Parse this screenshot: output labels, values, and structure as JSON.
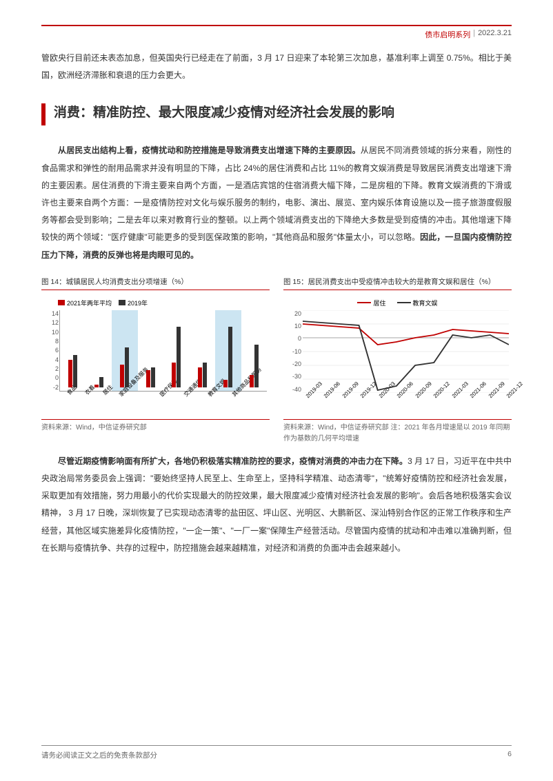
{
  "header": {
    "series": "债市启明系列",
    "date": "2022.3.21"
  },
  "intro_para": "管欧央行目前还未表态加息，但英国央行已经走在了前面，3 月 17 日迎来了本轮第三次加息，基准利率上调至 0.75%。相比于美国，欧洲经济滞胀和衰退的压力会更大。",
  "section_title": "消费：精准防控、最大限度减少疫情对经济社会发展的影响",
  "para1_lead": "从居民支出结构上看，疫情扰动和防控措施是导致消费支出增速下降的主要原因。",
  "para1_body": "从居民不同消费领域的拆分来看，刚性的食品需求和弹性的耐用品需求并没有明显的下降，占比 24%的居住消费和占比 11%的教育文娱消费是导致居民消费支出增速下滑的主要因素。居住消费的下滑主要来自两个方面，一是酒店宾馆的住宿消费大幅下降，二是房租的下降。教育文娱消费的下滑或许也主要来自两个方面：一是疫情防控对文化与娱乐服务的制约，电影、演出、展览、室内娱乐体育设施以及一揽子旅游度假服务等都会受到影响；二是去年以来对教育行业的整顿。以上两个领域消费支出的下降绝大多数是受到疫情的冲击。其他增速下降较快的两个领域：\"医疗健康\"可能更多的受到医保政策的影响，\"其他商品和服务\"体量太小，可以忽略。",
  "para1_tail": "因此，一旦国内疫情防控压力下降，消费的反弹也将是肉眼可见的。",
  "chart14": {
    "title": "图 14：城镇居民人均消费支出分项增速（%）",
    "type": "bar",
    "legend": [
      "2021年两年平均",
      "2019年"
    ],
    "colors": [
      "#c00000",
      "#333333"
    ],
    "highlight_color": "#cce5f2",
    "categories": [
      "食品",
      "衣着",
      "居住",
      "家庭设备及服务",
      "医疗保健",
      "交通通信",
      "教育文娱",
      "其他商品和服务"
    ],
    "highlight_idx": [
      2,
      6
    ],
    "series1": [
      5.5,
      0.5,
      4.5,
      3.5,
      5,
      4,
      1.5,
      2.5
    ],
    "series2": [
      6.5,
      2,
      8,
      4,
      12,
      5,
      12,
      8.5
    ],
    "ymin": -2,
    "ymax": 14,
    "ystep": 2,
    "source": "资料来源：Wind，中信证券研究部"
  },
  "chart15": {
    "title": "图 15：居民消费支出中受疫情冲击较大的是教育文娱和居住（%）",
    "type": "line",
    "legend": [
      "居住",
      "教育文娱"
    ],
    "colors": [
      "#c00000",
      "#333333"
    ],
    "xlabels": [
      "2019-03",
      "2019-06",
      "2019-09",
      "2019-12",
      "2020-03",
      "2020-06",
      "2020-09",
      "2020-12",
      "2021-03",
      "2021-06",
      "2021-09",
      "2021-12"
    ],
    "series_housing": [
      10,
      9,
      8,
      7,
      -5,
      -3,
      0,
      2,
      6,
      5,
      4,
      3
    ],
    "series_edu": [
      12,
      11,
      10,
      9,
      -38,
      -35,
      -20,
      -18,
      2,
      0,
      2,
      -5
    ],
    "ymin": -40,
    "ymax": 20,
    "ystep": 10,
    "source": "资料来源：Wind，中信证券研究部  注：2021 年各月增速是以 2019 年同期作为基数的几何平均增速"
  },
  "para2_lead": "尽管近期疫情影响面有所扩大，各地仍积极落实精准防控的要求，疫情对消费的冲击力在下降。",
  "para2_body": "3 月 17 日，习近平在中共中央政治局常务委员会上强调：\"要始终坚持人民至上、生命至上，坚持科学精准、动态清零\"，\"统筹好疫情防控和经济社会发展，采取更加有效措施，努力用最小的代价实现最大的防控效果，最大限度减少疫情对经济社会发展的影响\"。会后各地积极落实会议精神， 3 月 17 日晚，深圳恢复了已实现动态清零的盐田区、坪山区、光明区、大鹏新区、深汕特别合作区的正常工作秩序和生产经营，其他区域实施差异化疫情防控，\"一企一策\"、\"一厂一案\"保障生产经营活动。尽管国内疫情的扰动和冲击难以准确判断，但在长期与疫情抗争、共存的过程中，防控措施会越来越精准，对经济和消费的负面冲击会越来越小。",
  "footer": {
    "disclaimer": "请务必阅读正文之后的免责条款部分",
    "page": "6"
  }
}
